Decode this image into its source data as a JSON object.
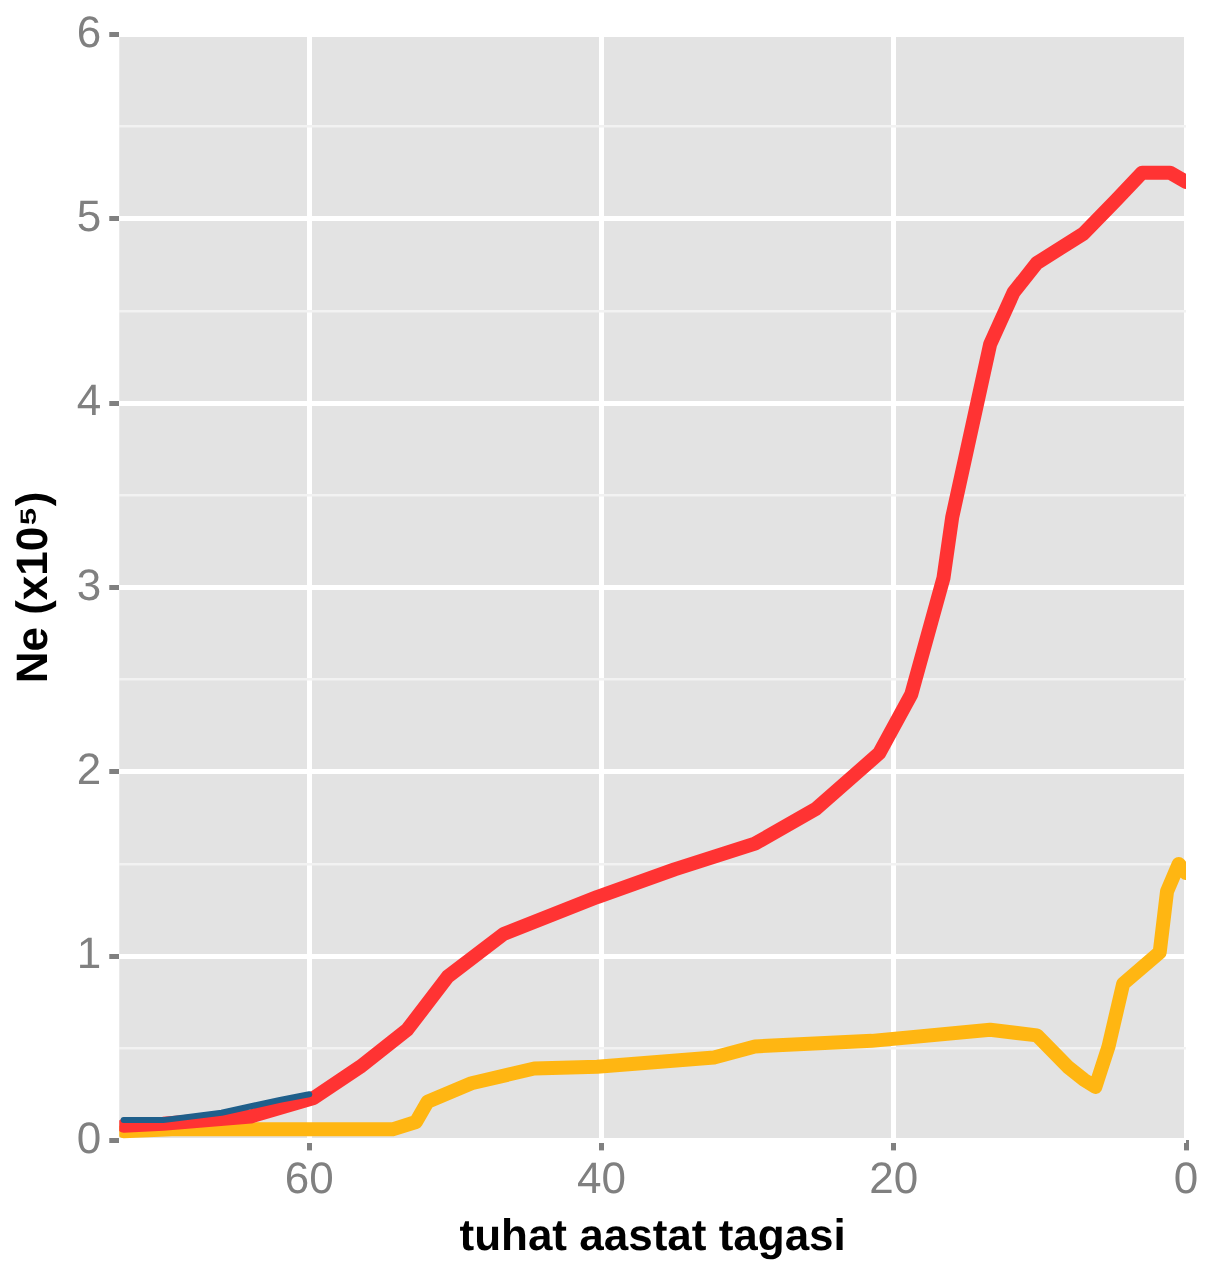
{
  "chart_data": {
    "type": "line",
    "xlabel": "tuhat aastat tagasi",
    "ylabel": "Ne (x10⁵)",
    "xlim": [
      73,
      0
    ],
    "xticks": [
      60,
      40,
      20,
      0
    ],
    "ylim": [
      0,
      6
    ],
    "yticks": [
      0,
      {
        "value": 0.5,
        "label": null
      },
      1,
      {
        "value": 1.5,
        "label": null
      },
      2,
      {
        "value": 2.5,
        "label": null
      },
      3,
      {
        "value": 3.5,
        "label": null
      },
      4,
      {
        "value": 4.5,
        "label": null
      },
      5,
      {
        "value": 5.5,
        "label": null
      },
      6
    ],
    "grid": true,
    "legend": false,
    "marker": "none",
    "line_style": "solid",
    "series": [
      {
        "color": "#1f5f8b",
        "x": [
          72.7,
          70,
          66,
          62,
          60
        ],
        "values": [
          0.11,
          0.11,
          0.15,
          0.22,
          0.25
        ]
      },
      {
        "color": "#ff3333",
        "x": [
          72.7,
          70,
          64,
          59.7,
          56.5,
          53.3,
          50.5,
          46.7,
          40.3,
          35,
          29.5,
          25.3,
          21,
          18.8,
          16.6,
          16,
          13.4,
          11.8,
          10.2,
          7,
          4.8,
          3,
          1.1,
          0
        ],
        "values": [
          0.08,
          0.09,
          0.13,
          0.23,
          0.4,
          0.6,
          0.89,
          1.12,
          1.32,
          1.47,
          1.61,
          1.8,
          2.1,
          2.42,
          3.05,
          3.38,
          4.32,
          4.6,
          4.76,
          4.92,
          5.1,
          5.25,
          5.25,
          5.2
        ]
      },
      {
        "color": "#ffb612",
        "x": [
          72.7,
          69.4,
          54.3,
          52.7,
          51.9,
          48.9,
          44.6,
          40.3,
          32.3,
          29.5,
          21.5,
          13.4,
          10.2,
          8.1,
          7,
          6.2,
          5.3,
          4.3,
          1.8,
          1.3,
          0.5,
          0
        ],
        "values": [
          0.05,
          0.06,
          0.06,
          0.1,
          0.21,
          0.31,
          0.39,
          0.4,
          0.45,
          0.51,
          0.54,
          0.6,
          0.57,
          0.4,
          0.33,
          0.29,
          0.51,
          0.85,
          1.02,
          1.35,
          1.5,
          1.45
        ]
      }
    ]
  }
}
